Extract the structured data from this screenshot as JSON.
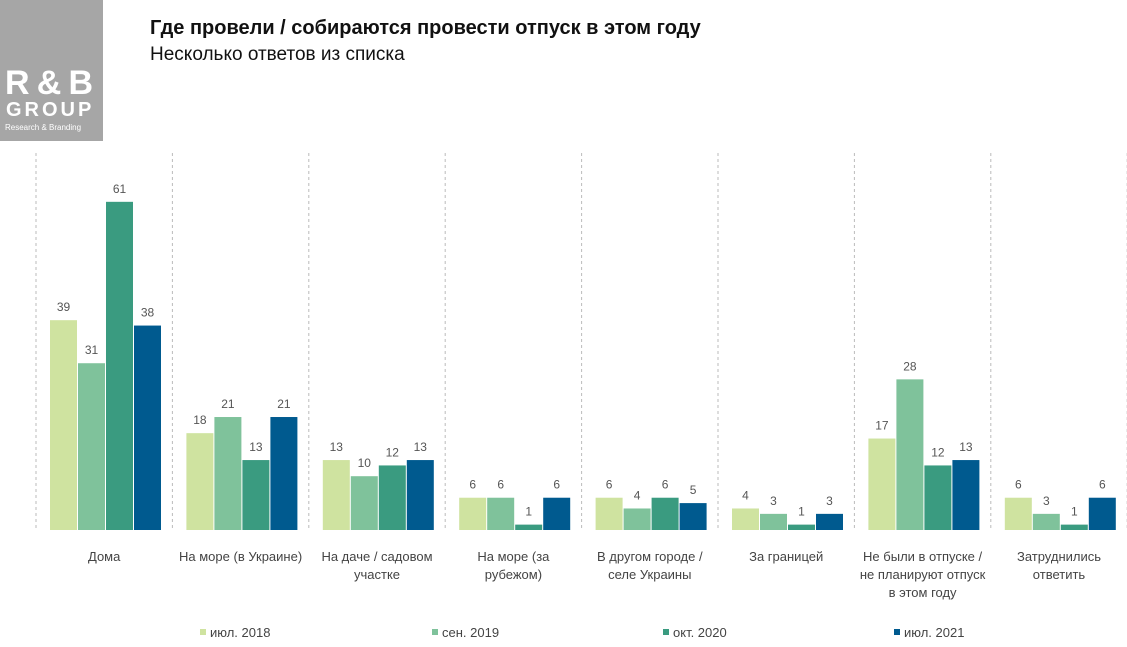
{
  "logo": {
    "brand": "R&B",
    "group": "GROUP",
    "tagline": "Research & Branding"
  },
  "chart_data": {
    "type": "bar",
    "title": "Где провели / собираются провести отпуск в этом году",
    "subtitle": "Несколько ответов из списка",
    "categories": [
      "Дома",
      "На море (в Украине)",
      "На даче / садовом участке",
      "На море (за рубежом)",
      "В другом городе / селе Украины",
      "За границей",
      "Не были в отпуске / не планируют отпуск в этом году",
      "Затруднились ответить"
    ],
    "series": [
      {
        "name": "июл. 2018",
        "color": "#cfe3a0",
        "values": [
          39,
          18,
          13,
          6,
          6,
          4,
          17,
          6
        ]
      },
      {
        "name": "сен. 2019",
        "color": "#7fc29b",
        "values": [
          31,
          21,
          10,
          6,
          4,
          3,
          28,
          3
        ]
      },
      {
        "name": "окт. 2020",
        "color": "#3a9b80",
        "values": [
          61,
          13,
          12,
          1,
          6,
          1,
          12,
          1
        ]
      },
      {
        "name": "июл. 2021",
        "color": "#005a8f",
        "values": [
          38,
          21,
          13,
          6,
          5,
          3,
          13,
          6
        ]
      }
    ]
  }
}
